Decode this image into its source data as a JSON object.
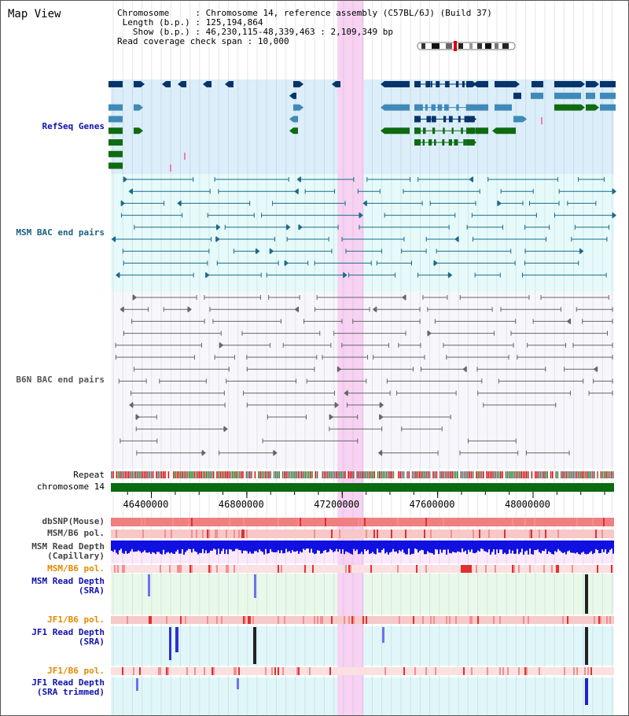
{
  "view": {
    "title": "Map View",
    "info": {
      "chromosome_label": "Chromosome",
      "chromosome_value": "Chromosome 14, reference assembly (C57BL/6J) (Build 37)",
      "length_label": "Length (b.p.)",
      "length_value": "125,194,864",
      "show_label": "Show (b.p.)",
      "show_value": "46,230,115-48,339,463 : 2,109,349 bp",
      "span_label": "Read coverage check span",
      "span_value": "10,000"
    },
    "highlight": {
      "start": 47180000,
      "end": 47290000
    }
  },
  "axis": {
    "start": 46230115,
    "end": 48339463,
    "ticks": [
      {
        "value": 46400000,
        "label": "46400000"
      },
      {
        "value": 46800000,
        "label": "46800000"
      },
      {
        "value": 47200000,
        "label": "47200000"
      },
      {
        "value": 47600000,
        "label": "47600000"
      },
      {
        "value": 48000000,
        "label": "48000000"
      }
    ]
  },
  "tracks": {
    "refseq": {
      "label": "RefSeq Genes"
    },
    "msm_bac": {
      "label": "MSM BAC end pairs"
    },
    "b6n_bac": {
      "label": "B6N BAC end pairs"
    },
    "repeat": {
      "label": "Repeat"
    },
    "chromosome": {
      "label": "chromosome 14"
    },
    "dbsnp": {
      "label": "dbSNP(Mouse)"
    },
    "msm_b6_pol_1": {
      "label": "MSM/B6 pol."
    },
    "msm_depth_cap": {
      "line1": "MSM Read Depth",
      "line2": "(Capillary)"
    },
    "msm_b6_pol_2": {
      "label": "MSM/B6 pol."
    },
    "msm_depth_sra": {
      "line1": "MSM Read Depth",
      "line2": "(SRA)"
    },
    "jf1_b6_pol_1": {
      "label": "JF1/B6 pol."
    },
    "jf1_depth_sra": {
      "line1": "JF1 Read Depth",
      "line2": "(SRA)"
    },
    "jf1_b6_pol_2": {
      "label": "JF1/B6 pol."
    },
    "jf1_depth_trim": {
      "line1": "JF1 Read Depth",
      "line2": "(SRA trimmed)"
    }
  },
  "colors": {
    "refseq_bg": "#dbeef9",
    "msm_bac_bg": "#e6fafa",
    "b6n_bac_bg": "#f7f7fb",
    "highlight": "#f7d2f2",
    "gene_dark": "#06346b",
    "gene_mid": "#3f8ab8",
    "gene_green": "#0f6b12",
    "msm_bac": "#1b6b8a",
    "b6n_bac": "#666666",
    "chromosome": "#0b6b10",
    "depth_blue": "#1010e0",
    "depth_sra": "#7070f0",
    "label_blue": "#1010b0",
    "label_teal": "#1a5e80",
    "label_orange": "#e58a00",
    "label_gray": "#444444"
  }
}
